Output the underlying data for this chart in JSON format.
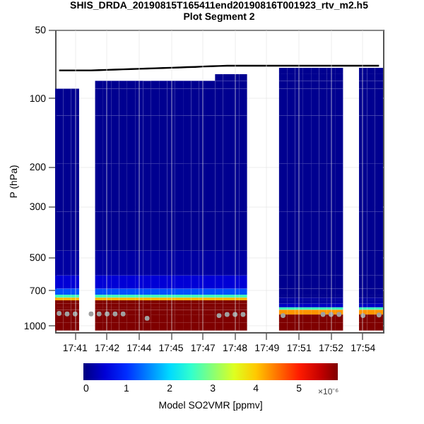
{
  "chart_data": {
    "type": "heatmap",
    "title": "SHIS_DRDA_20190815T165411end20190816T001923_rtv_m2.h5",
    "subtitle": "Plot Segment 2",
    "ylabel": "P (hPa)",
    "clabel": "Model SO2VMR [ppmv]",
    "annotations": [
      "×10⁻⁶"
    ],
    "categories": [
      null,
      null,
      "17:41",
      null,
      null,
      null,
      "17:42",
      null,
      null,
      null,
      "17:44",
      null,
      null,
      null,
      "17:45",
      null,
      null,
      null,
      "17:47",
      null,
      null,
      null,
      "17:48",
      null,
      null,
      null,
      "17:49",
      null,
      null,
      null,
      "17:51",
      null,
      null,
      null,
      "17:52",
      null,
      null,
      null,
      "17:54",
      null,
      null
    ],
    "y": [
      76,
      81,
      87,
      95,
      150,
      250,
      400,
      550,
      660,
      720,
      745,
      765,
      785,
      820,
      845,
      862,
      930,
      1010
    ],
    "cells": [
      [
        null,
        null,
        null,
        null,
        null,
        null,
        null,
        null,
        null,
        null,
        null,
        null,
        null,
        null,
        null,
        null,
        null,
        null,
        null,
        null,
        null,
        null,
        null,
        null,
        null,
        null,
        null,
        null,
        0.1,
        0.1,
        0.1,
        0.1,
        0.1,
        0.1,
        0.1,
        0.1,
        null,
        null,
        0.1,
        0.1,
        0.1
      ],
      [
        null,
        null,
        null,
        null,
        null,
        null,
        null,
        null,
        null,
        null,
        null,
        null,
        null,
        null,
        null,
        null,
        null,
        null,
        null,
        null,
        0.1,
        0.1,
        0.1,
        0.1,
        null,
        null,
        null,
        null,
        0.1,
        0.1,
        0.1,
        0.1,
        0.1,
        0.1,
        0.1,
        0.1,
        null,
        null,
        0.1,
        0.1,
        0.1
      ],
      [
        null,
        null,
        null,
        null,
        null,
        0.1,
        0.1,
        0.1,
        0.1,
        0.1,
        0.1,
        0.1,
        0.1,
        0.1,
        0.1,
        0.1,
        0.1,
        0.1,
        0.1,
        0.1,
        0.1,
        0.1,
        0.1,
        0.1,
        null,
        null,
        null,
        null,
        0.1,
        0.1,
        0.1,
        0.1,
        0.1,
        0.1,
        0.1,
        0.1,
        null,
        null,
        0.1,
        0.1,
        0.1
      ],
      [
        0.1,
        0.1,
        0.1,
        null,
        null,
        0.1,
        0.1,
        0.1,
        0.1,
        0.1,
        0.1,
        0.1,
        0.1,
        0.1,
        0.1,
        0.1,
        0.1,
        0.1,
        0.1,
        0.1,
        0.1,
        0.1,
        0.1,
        0.1,
        null,
        null,
        null,
        null,
        0.1,
        0.1,
        0.1,
        0.1,
        0.1,
        0.1,
        0.1,
        0.1,
        null,
        null,
        0.1,
        0.1,
        0.1
      ],
      [
        0.1,
        0.1,
        0.1,
        null,
        null,
        0.1,
        0.1,
        0.1,
        0.1,
        0.1,
        0.1,
        0.1,
        0.1,
        0.1,
        0.1,
        0.1,
        0.1,
        0.1,
        0.1,
        0.1,
        0.1,
        0.1,
        0.1,
        0.1,
        null,
        null,
        null,
        null,
        0.1,
        0.1,
        0.1,
        0.1,
        0.1,
        0.1,
        0.1,
        0.1,
        null,
        null,
        0.1,
        0.1,
        0.1
      ],
      [
        0.1,
        0.1,
        0.1,
        null,
        null,
        0.1,
        0.1,
        0.1,
        0.1,
        0.1,
        0.1,
        0.1,
        0.1,
        0.1,
        0.1,
        0.1,
        0.1,
        0.1,
        0.1,
        0.1,
        0.1,
        0.1,
        0.1,
        0.1,
        null,
        null,
        null,
        null,
        0.1,
        0.1,
        0.1,
        0.1,
        0.1,
        0.1,
        0.1,
        0.1,
        null,
        null,
        0.1,
        0.1,
        0.1
      ],
      [
        0.1,
        0.1,
        0.1,
        null,
        null,
        0.1,
        0.1,
        0.1,
        0.1,
        0.1,
        0.1,
        0.1,
        0.1,
        0.1,
        0.1,
        0.1,
        0.1,
        0.1,
        0.1,
        0.1,
        0.1,
        0.1,
        0.1,
        0.1,
        null,
        null,
        null,
        null,
        0.1,
        0.1,
        0.1,
        0.1,
        0.1,
        0.1,
        0.1,
        0.1,
        null,
        null,
        0.1,
        0.1,
        0.1
      ],
      [
        0.2,
        0.2,
        0.2,
        null,
        null,
        0.2,
        0.2,
        0.2,
        0.2,
        0.2,
        0.2,
        0.2,
        0.2,
        0.2,
        0.2,
        0.2,
        0.2,
        0.2,
        0.2,
        0.2,
        0.2,
        0.2,
        0.2,
        0.2,
        null,
        null,
        null,
        null,
        0.1,
        0.1,
        0.1,
        0.1,
        0.1,
        0.1,
        0.1,
        0.1,
        null,
        null,
        0.1,
        0.1,
        0.1
      ],
      [
        0.5,
        0.5,
        0.5,
        null,
        null,
        0.5,
        0.5,
        0.5,
        0.5,
        0.5,
        0.5,
        0.5,
        0.5,
        0.5,
        0.5,
        0.5,
        0.5,
        0.5,
        0.5,
        0.5,
        0.5,
        0.5,
        0.5,
        0.5,
        null,
        null,
        null,
        null,
        0.1,
        0.1,
        0.1,
        0.1,
        0.1,
        0.1,
        0.1,
        0.1,
        null,
        null,
        0.1,
        0.1,
        0.1
      ],
      [
        1.2,
        1.2,
        1.2,
        null,
        null,
        1.2,
        1.2,
        1.2,
        1.2,
        1.2,
        1.2,
        1.2,
        1.2,
        1.2,
        1.2,
        1.2,
        1.2,
        1.2,
        1.2,
        1.2,
        1.2,
        1.2,
        1.2,
        1.2,
        null,
        null,
        null,
        null,
        0.1,
        0.1,
        0.1,
        0.1,
        0.1,
        0.1,
        0.1,
        0.1,
        null,
        null,
        0.1,
        0.1,
        0.1
      ],
      [
        2.6,
        2.6,
        2.6,
        null,
        null,
        2.6,
        2.6,
        2.6,
        2.6,
        2.6,
        2.6,
        2.6,
        2.6,
        2.6,
        2.6,
        2.6,
        2.6,
        2.6,
        2.6,
        2.6,
        2.6,
        2.6,
        2.6,
        2.6,
        null,
        null,
        null,
        null,
        0.1,
        0.1,
        0.1,
        0.1,
        0.1,
        0.1,
        0.1,
        0.1,
        null,
        null,
        0.1,
        0.1,
        0.1
      ],
      [
        4.1,
        4.1,
        4.1,
        null,
        null,
        4.1,
        4.1,
        4.1,
        4.1,
        4.1,
        4.1,
        4.1,
        4.1,
        4.1,
        4.1,
        4.1,
        4.1,
        4.1,
        4.1,
        4.1,
        4.1,
        4.1,
        4.1,
        4.1,
        null,
        null,
        null,
        null,
        0.2,
        0.2,
        0.2,
        0.2,
        0.2,
        0.2,
        0.2,
        0.2,
        null,
        null,
        0.2,
        0.2,
        0.2
      ],
      [
        5.9,
        5.9,
        5.9,
        null,
        null,
        5.9,
        5.9,
        5.9,
        5.9,
        5.9,
        5.9,
        5.9,
        5.9,
        5.9,
        5.9,
        5.9,
        5.9,
        5.9,
        5.9,
        5.9,
        5.9,
        5.9,
        5.9,
        5.9,
        null,
        null,
        null,
        null,
        0.2,
        0.2,
        0.2,
        0.2,
        0.2,
        0.2,
        0.2,
        0.2,
        null,
        null,
        0.2,
        0.2,
        0.2
      ],
      [
        5.9,
        5.9,
        5.9,
        null,
        null,
        5.9,
        5.9,
        5.9,
        5.9,
        5.9,
        5.9,
        5.9,
        5.9,
        5.9,
        5.9,
        5.9,
        5.9,
        5.9,
        5.9,
        5.9,
        5.9,
        5.9,
        5.9,
        5.9,
        null,
        null,
        null,
        null,
        0.4,
        0.4,
        0.4,
        0.4,
        0.4,
        0.4,
        0.4,
        0.4,
        null,
        null,
        0.4,
        0.4,
        0.4
      ],
      [
        5.9,
        5.9,
        5.9,
        null,
        null,
        5.9,
        5.9,
        5.9,
        5.9,
        5.9,
        5.9,
        5.9,
        5.9,
        5.9,
        5.9,
        5.9,
        5.9,
        5.9,
        5.9,
        5.9,
        5.9,
        5.9,
        5.9,
        5.9,
        null,
        null,
        null,
        null,
        2.6,
        2.6,
        2.6,
        2.6,
        2.6,
        2.6,
        2.6,
        2.6,
        null,
        null,
        2.6,
        2.6,
        2.6
      ],
      [
        5.9,
        5.9,
        5.9,
        null,
        null,
        5.9,
        5.9,
        5.9,
        5.9,
        5.9,
        5.9,
        5.9,
        5.9,
        5.9,
        5.9,
        5.9,
        5.9,
        5.9,
        5.9,
        5.9,
        5.9,
        5.9,
        5.9,
        5.9,
        null,
        null,
        null,
        null,
        4.3,
        4.3,
        4.3,
        4.3,
        4.3,
        4.3,
        4.3,
        4.3,
        null,
        null,
        4.3,
        4.3,
        4.3
      ],
      [
        5.9,
        5.9,
        5.9,
        null,
        null,
        5.9,
        5.9,
        5.9,
        5.9,
        5.9,
        5.9,
        5.9,
        5.9,
        5.9,
        5.9,
        5.9,
        5.9,
        5.9,
        5.9,
        5.9,
        5.9,
        5.9,
        5.9,
        5.9,
        null,
        null,
        null,
        null,
        5.9,
        5.9,
        5.9,
        5.9,
        5.9,
        5.9,
        5.9,
        5.9,
        null,
        null,
        5.9,
        5.9,
        5.9
      ],
      [
        5.9,
        5.9,
        5.9,
        null,
        null,
        5.9,
        5.9,
        5.9,
        5.9,
        5.9,
        5.9,
        5.9,
        5.9,
        5.9,
        5.9,
        5.9,
        5.9,
        5.9,
        5.9,
        5.9,
        5.9,
        5.9,
        5.9,
        5.9,
        null,
        null,
        null,
        null,
        5.9,
        5.9,
        5.9,
        5.9,
        5.9,
        5.9,
        5.9,
        5.9,
        null,
        null,
        5.9,
        5.9,
        5.9
      ]
    ],
    "series": [
      {
        "type": "line",
        "color": "#000000",
        "values": [
          75.5,
          75.5,
          75.5,
          75.5,
          75.5,
          75.3,
          75.1,
          74.9,
          74.7,
          74.5,
          74.3,
          74.1,
          73.9,
          73.7,
          73.5,
          73.3,
          73.1,
          72.9,
          72.6,
          72.4,
          72.2,
          72.0,
          72.0,
          72.0,
          72.0,
          72.0,
          72.0,
          72.0,
          72.0,
          72.0,
          72.0,
          72.0,
          72.0,
          72.0,
          72.0,
          72.0,
          72.0,
          72.0,
          72.0,
          72.0,
          72.0
        ]
      },
      {
        "type": "scatter",
        "marker": "circle",
        "color": "#a0a0a0",
        "values": [
          885,
          890,
          890,
          null,
          890,
          890,
          890,
          890,
          890,
          null,
          null,
          930,
          null,
          null,
          null,
          null,
          null,
          null,
          null,
          null,
          905,
          895,
          895,
          895,
          null,
          null,
          null,
          null,
          905,
          null,
          null,
          null,
          null,
          895,
          895,
          895,
          null,
          null,
          905,
          null,
          900
        ]
      }
    ],
    "ylim": [
      1070,
      50
    ],
    "yticks": [
      50,
      100,
      200,
      300,
      500,
      700,
      {
        "value": 1000,
        "label": "1000"
      }
    ],
    "log": "y",
    "grid": true,
    "clim": [
      0,
      5.9
    ],
    "cticks": [
      0,
      1,
      2,
      3,
      4,
      5
    ]
  }
}
